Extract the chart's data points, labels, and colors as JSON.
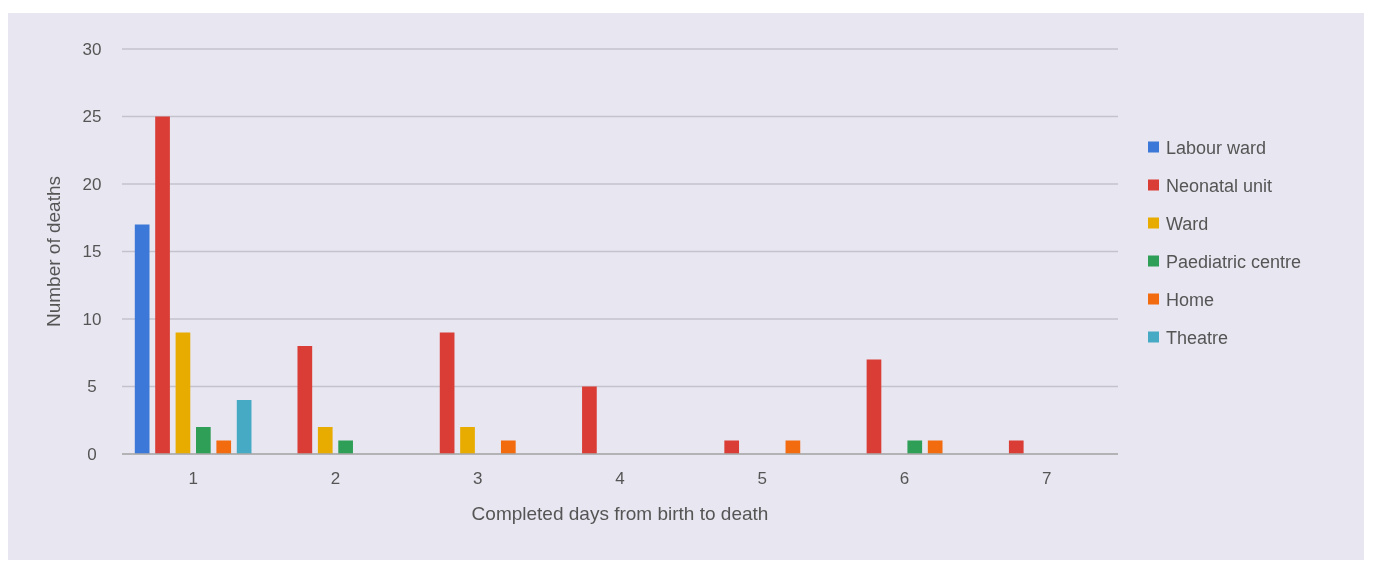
{
  "chart_data": {
    "type": "bar",
    "xlabel": "Completed days from birth to death",
    "ylabel": "Number of deaths",
    "categories": [
      "1",
      "2",
      "3",
      "4",
      "5",
      "6",
      "7"
    ],
    "series": [
      {
        "name": "Labour ward",
        "color": "#3c78d8",
        "values": [
          17,
          null,
          null,
          null,
          null,
          null,
          null
        ]
      },
      {
        "name": "Neonatal unit",
        "color": "#d93d35",
        "values": [
          25,
          8,
          9,
          5,
          1,
          7,
          1
        ]
      },
      {
        "name": "Ward",
        "color": "#e8ab00",
        "values": [
          9,
          2,
          2,
          null,
          null,
          null,
          null
        ]
      },
      {
        "name": "Paediatric centre",
        "color": "#2f9e57",
        "values": [
          2,
          1,
          null,
          null,
          null,
          1,
          null
        ]
      },
      {
        "name": "Home",
        "color": "#f26b0f",
        "values": [
          1,
          null,
          1,
          null,
          1,
          1,
          null
        ]
      },
      {
        "name": "Theatre",
        "color": "#46aac4",
        "values": [
          4,
          null,
          null,
          null,
          null,
          null,
          null
        ]
      }
    ],
    "ylim": [
      0,
      30
    ],
    "yticks": [
      0,
      5,
      10,
      15,
      20,
      25,
      30
    ],
    "grid": true,
    "legend": "right"
  }
}
